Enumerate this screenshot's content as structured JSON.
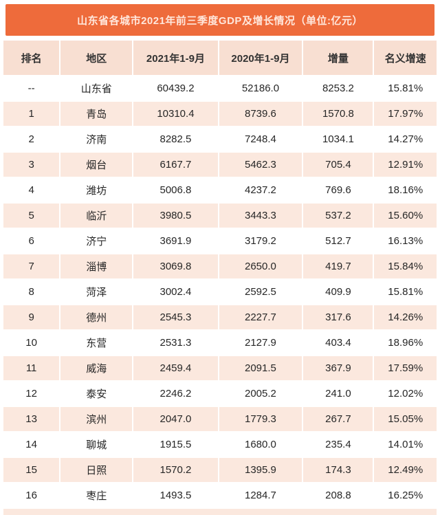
{
  "title": "山东省各城市2021年前三季度GDP及增长情况（单位:亿元）",
  "colors": {
    "accent_orange": "#ee6b3b",
    "title_text_color": "#ffe7dc",
    "header_bg": "#f8dfd2",
    "stripe_bg": "#fbe8de",
    "text_color": "#262626"
  },
  "chart_data": {
    "type": "table",
    "title": "山东省各城市2021年前三季度GDP及增长情况（单位:亿元）",
    "unit": "亿元",
    "columns": [
      "排名",
      "地区",
      "2021年1-9月",
      "2020年1-9月",
      "增量",
      "名义增速"
    ],
    "rows": [
      [
        "--",
        "山东省",
        "60439.2",
        "52186.0",
        "8253.2",
        "15.81%"
      ],
      [
        "1",
        "青岛",
        "10310.4",
        "8739.6",
        "1570.8",
        "17.97%"
      ],
      [
        "2",
        "济南",
        "8282.5",
        "7248.4",
        "1034.1",
        "14.27%"
      ],
      [
        "3",
        "烟台",
        "6167.7",
        "5462.3",
        "705.4",
        "12.91%"
      ],
      [
        "4",
        "潍坊",
        "5006.8",
        "4237.2",
        "769.6",
        "18.16%"
      ],
      [
        "5",
        "临沂",
        "3980.5",
        "3443.3",
        "537.2",
        "15.60%"
      ],
      [
        "6",
        "济宁",
        "3691.9",
        "3179.2",
        "512.7",
        "16.13%"
      ],
      [
        "7",
        "淄博",
        "3069.8",
        "2650.0",
        "419.7",
        "15.84%"
      ],
      [
        "8",
        "菏泽",
        "3002.4",
        "2592.5",
        "409.9",
        "15.81%"
      ],
      [
        "9",
        "德州",
        "2545.3",
        "2227.7",
        "317.6",
        "14.26%"
      ],
      [
        "10",
        "东营",
        "2531.3",
        "2127.9",
        "403.4",
        "18.96%"
      ],
      [
        "11",
        "威海",
        "2459.4",
        "2091.5",
        "367.9",
        "17.59%"
      ],
      [
        "12",
        "泰安",
        "2246.2",
        "2005.2",
        "241.0",
        "12.02%"
      ],
      [
        "13",
        "滨州",
        "2047.0",
        "1779.3",
        "267.7",
        "15.05%"
      ],
      [
        "14",
        "聊城",
        "1915.5",
        "1680.0",
        "235.4",
        "14.01%"
      ],
      [
        "15",
        "日照",
        "1570.2",
        "1395.9",
        "174.3",
        "12.49%"
      ],
      [
        "16",
        "枣庄",
        "1493.5",
        "1284.7",
        "208.8",
        "16.25%"
      ]
    ],
    "cell_names": [
      "rank-cell",
      "region-cell",
      "gdp-2021-cell",
      "gdp-2020-cell",
      "increment-cell",
      "growth-rate-cell"
    ]
  }
}
